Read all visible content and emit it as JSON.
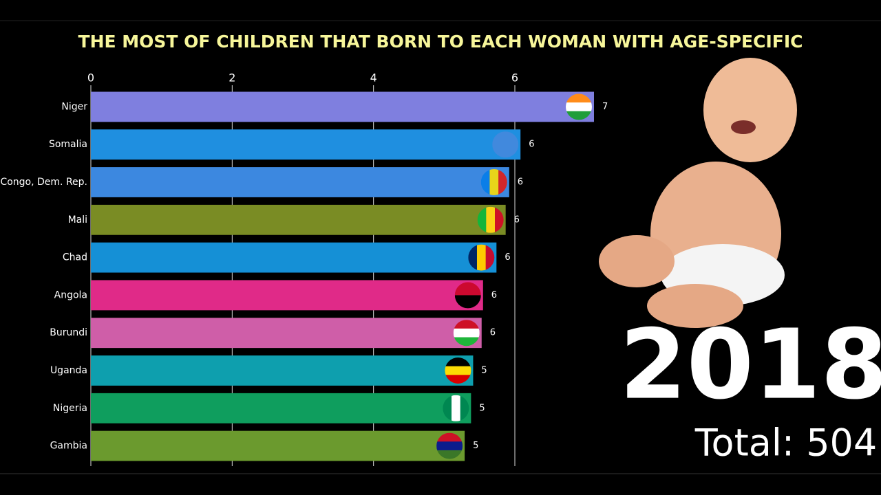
{
  "chart_data": {
    "type": "barh",
    "title": "THE MOST OF CHILDREN THAT BORN TO EACH WOMAN WITH AGE-SPECIFIC",
    "categories": [
      "Niger",
      "Somalia",
      "Congo, Dem. Rep.",
      "Mali",
      "Chad",
      "Angola",
      "Burundi",
      "Uganda",
      "Nigeria",
      "Gambia"
    ],
    "values": [
      7.12,
      6.08,
      5.92,
      5.87,
      5.74,
      5.55,
      5.53,
      5.41,
      5.38,
      5.29
    ],
    "value_labels": [
      "7",
      "6",
      "6",
      "6",
      "6",
      "6",
      "6",
      "5",
      "5",
      "5"
    ],
    "colors": [
      "#7f7fdf",
      "#1f8fe0",
      "#3c88e0",
      "#7a8c24",
      "#1590d6",
      "#e02a88",
      "#cf5ea8",
      "#0e9fae",
      "#0f9e5e",
      "#6b9a2e"
    ],
    "xlim": [
      0,
      7.12
    ],
    "xticks": [
      0,
      2,
      4,
      6
    ],
    "grid": true,
    "year": "2018",
    "total": "Total: 504"
  }
}
